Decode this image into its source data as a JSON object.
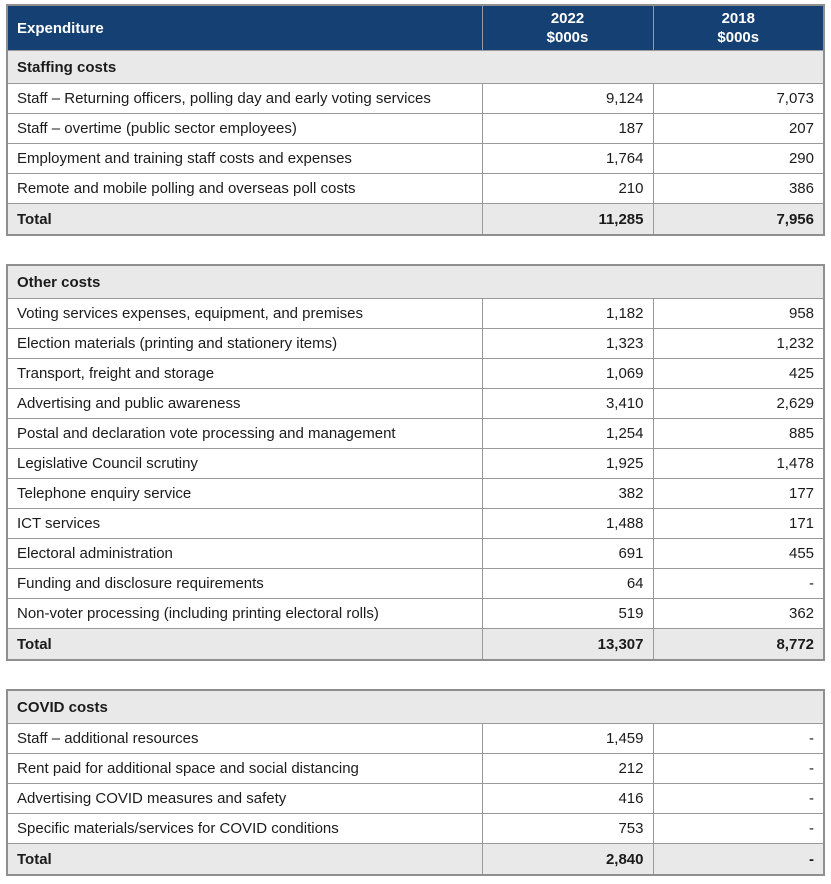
{
  "colors": {
    "header_bg": "#154073",
    "header_text": "#ffffff",
    "section_row_bg": "#e9e9e9",
    "data_row_bg": "#ffffff",
    "border": "#999999",
    "text": "#1b1b1b"
  },
  "table_header": {
    "col1": "Expenditure",
    "col2_line1": "2022",
    "col2_line2": "$000s",
    "col3_line1": "2018",
    "col3_line2": "$000s"
  },
  "sections": [
    {
      "title": "Staffing costs",
      "rows": [
        {
          "label": "Staff – Returning officers, polling day and early voting services",
          "y2022": "9,124",
          "y2018": "7,073"
        },
        {
          "label": "Staff – overtime (public sector employees)",
          "y2022": "187",
          "y2018": "207"
        },
        {
          "label": "Employment and training staff costs and expenses",
          "y2022": "1,764",
          "y2018": "290"
        },
        {
          "label": "Remote and mobile polling and overseas poll costs",
          "y2022": "210",
          "y2018": "386"
        }
      ],
      "total": {
        "label": "Total",
        "y2022": "11,285",
        "y2018": "7,956"
      }
    },
    {
      "title": "Other costs",
      "rows": [
        {
          "label": "Voting services expenses, equipment, and premises",
          "y2022": "1,182",
          "y2018": "958"
        },
        {
          "label": "Election materials (printing and stationery items)",
          "y2022": "1,323",
          "y2018": "1,232"
        },
        {
          "label": "Transport, freight and storage",
          "y2022": "1,069",
          "y2018": "425"
        },
        {
          "label": "Advertising and public awareness",
          "y2022": "3,410",
          "y2018": "2,629"
        },
        {
          "label": "Postal and declaration vote processing and management",
          "y2022": "1,254",
          "y2018": "885"
        },
        {
          "label": "Legislative Council scrutiny",
          "y2022": "1,925",
          "y2018": "1,478"
        },
        {
          "label": "Telephone enquiry service",
          "y2022": "382",
          "y2018": "177"
        },
        {
          "label": "ICT services",
          "y2022": "1,488",
          "y2018": "171"
        },
        {
          "label": "Electoral administration",
          "y2022": "691",
          "y2018": "455"
        },
        {
          "label": "Funding and disclosure requirements",
          "y2022": "64",
          "y2018": "-"
        },
        {
          "label": "Non-voter processing (including printing electoral rolls)",
          "y2022": "519",
          "y2018": "362"
        }
      ],
      "total": {
        "label": "Total",
        "y2022": "13,307",
        "y2018": "8,772"
      }
    },
    {
      "title": "COVID costs",
      "rows": [
        {
          "label": "Staff – additional resources",
          "y2022": "1,459",
          "y2018": "-"
        },
        {
          "label": "Rent paid for additional space and social distancing",
          "y2022": "212",
          "y2018": "-"
        },
        {
          "label": "Advertising COVID measures and safety",
          "y2022": "416",
          "y2018": "-"
        },
        {
          "label": "Specific materials/services for COVID conditions",
          "y2022": "753",
          "y2018": "-"
        }
      ],
      "total": {
        "label": "Total",
        "y2022": "2,840",
        "y2018": "-"
      }
    }
  ]
}
